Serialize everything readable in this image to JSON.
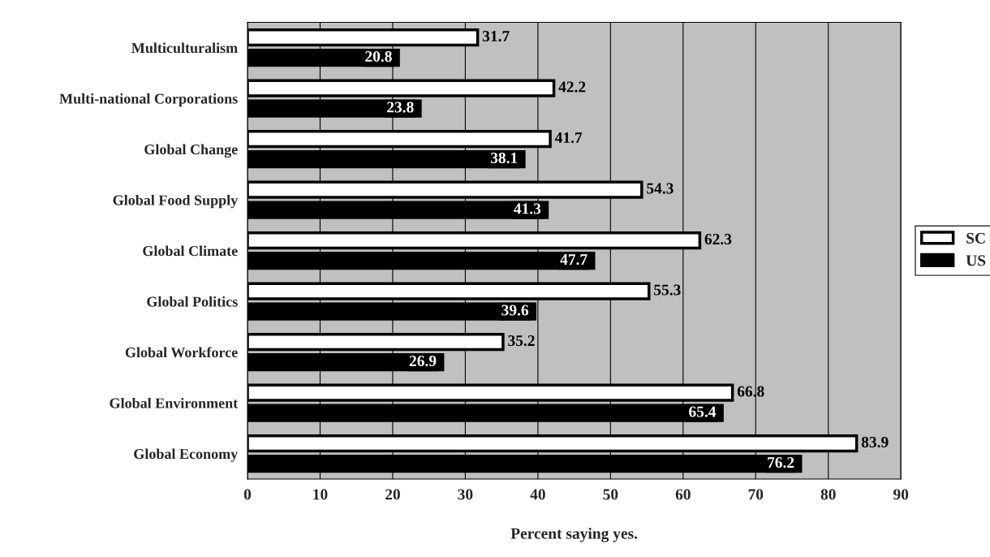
{
  "chart_data": {
    "type": "bar",
    "orientation": "horizontal",
    "xlabel": "Percent saying yes.",
    "categories": [
      "Multiculturalism",
      "Multi-national Corporations",
      "Global Change",
      "Global Food Supply",
      "Global Climate",
      "Global Politics",
      "Global Workforce",
      "Global Environment",
      "Global Economy"
    ],
    "series": [
      {
        "name": "SC",
        "color": "#ffffff",
        "values": [
          31.7,
          42.2,
          41.7,
          54.3,
          62.3,
          55.3,
          35.2,
          66.8,
          83.9
        ]
      },
      {
        "name": "US",
        "color": "#000000",
        "values": [
          20.8,
          23.8,
          38.1,
          41.3,
          47.7,
          39.6,
          26.9,
          65.4,
          76.2
        ]
      }
    ],
    "xlim": [
      0,
      90
    ],
    "xticks": [
      0,
      10,
      20,
      30,
      40,
      50,
      60,
      70,
      80,
      90
    ],
    "grid": "x",
    "legend": "right",
    "data_labels": true
  }
}
